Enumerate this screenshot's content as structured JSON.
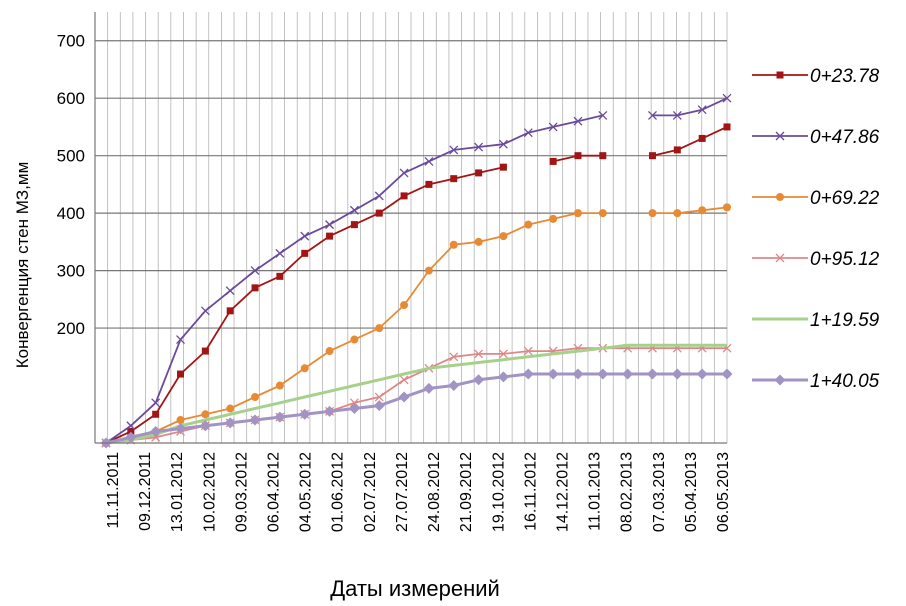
{
  "chart_data": {
    "type": "line",
    "title": "",
    "xlabel": "Даты измерений",
    "ylabel": "Конвергенция стен МЗ,мм",
    "ylim": [
      0,
      750
    ],
    "yticks": [
      200,
      300,
      400,
      500,
      600,
      700
    ],
    "grid": true,
    "legend_position": "right",
    "x_ticks": [
      "11.11.2011",
      "09.12.2011",
      "13.01.2012",
      "10.02.2012",
      "09.03.2012",
      "06.04.2012",
      "04.05.2012",
      "01.06.2012",
      "02.07.2012",
      "27.07.2012",
      "24.08.2012",
      "21.09.2012",
      "19.10.2012",
      "16.11.2012",
      "14.12.2012",
      "11.01.2013",
      "08.02.2013",
      "07.03.2013",
      "05.04.2013",
      "06.05.2013"
    ],
    "series": [
      {
        "name": "0+23.78",
        "color": "#a31515",
        "marker": "square",
        "values": [
          0,
          20,
          50,
          120,
          160,
          230,
          270,
          290,
          330,
          360,
          380,
          400,
          430,
          450,
          460,
          470,
          480,
          null,
          490,
          500,
          500,
          null,
          500,
          510,
          530,
          550
        ]
      },
      {
        "name": "0+47.86",
        "color": "#6a4a9c",
        "marker": "x",
        "values": [
          0,
          30,
          70,
          180,
          230,
          265,
          300,
          330,
          360,
          380,
          405,
          430,
          470,
          490,
          510,
          515,
          520,
          540,
          550,
          560,
          570,
          null,
          570,
          570,
          580,
          600
        ]
      },
      {
        "name": "0+69.22",
        "color": "#e88a34",
        "marker": "circle",
        "values": [
          0,
          10,
          20,
          40,
          50,
          60,
          80,
          100,
          130,
          160,
          180,
          200,
          240,
          300,
          345,
          350,
          360,
          380,
          390,
          400,
          400,
          null,
          400,
          400,
          405,
          410
        ]
      },
      {
        "name": "0+95.12",
        "color": "#dd8888",
        "marker": "x",
        "values": [
          0,
          5,
          10,
          20,
          30,
          35,
          40,
          45,
          50,
          55,
          70,
          80,
          110,
          130,
          150,
          155,
          155,
          160,
          160,
          165,
          165,
          165,
          165,
          165,
          165,
          165
        ]
      },
      {
        "name": "1+19.59",
        "color": "#a8d08d",
        "marker": "line",
        "values": [
          0,
          5,
          15,
          30,
          40,
          50,
          60,
          70,
          80,
          90,
          100,
          110,
          120,
          130,
          135,
          140,
          145,
          150,
          155,
          160,
          165,
          170,
          170,
          170,
          170,
          170
        ]
      },
      {
        "name": "1+40.05",
        "color": "#a193c3",
        "marker": "diamond",
        "values": [
          0,
          10,
          20,
          25,
          30,
          35,
          40,
          45,
          50,
          55,
          60,
          65,
          80,
          95,
          100,
          110,
          115,
          120,
          120,
          120,
          120,
          120,
          120,
          120,
          120,
          120
        ]
      }
    ]
  }
}
